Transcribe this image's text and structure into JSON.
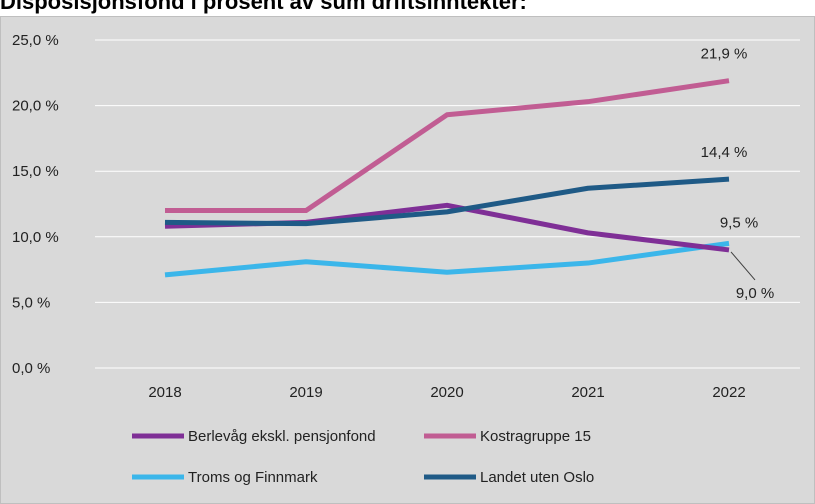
{
  "page_title": "Disposisjonsfond i prosent av sum driftsinntekter:",
  "chart_data": {
    "type": "line",
    "title": "Disposisjonsfond i prosent av sum driftsinntekter:",
    "categories": [
      "2018",
      "2019",
      "2020",
      "2021",
      "2022"
    ],
    "ylim": [
      0,
      25
    ],
    "yticks": [
      0,
      5,
      10,
      15,
      20,
      25
    ],
    "ytick_labels": [
      "0,0 %",
      "5,0 %",
      "10,0 %",
      "15,0 %",
      "20,0 %",
      "25,0 %"
    ],
    "grid": true,
    "legend_position": "bottom",
    "series": [
      {
        "name": "Berlevåg ekskl. pensjonfond",
        "color": "#7f2f96",
        "values": [
          10.8,
          11.1,
          12.4,
          10.3,
          9.0
        ]
      },
      {
        "name": "Kostragruppe 15",
        "color": "#c15d93",
        "values": [
          12.0,
          12.0,
          19.3,
          20.3,
          21.9
        ]
      },
      {
        "name": "Troms og Finnmark",
        "color": "#3bb6ea",
        "values": [
          7.1,
          8.1,
          7.3,
          8.0,
          9.5
        ]
      },
      {
        "name": "Landet uten Oslo",
        "color": "#1f5a86",
        "values": [
          11.1,
          11.0,
          11.9,
          13.7,
          14.4
        ]
      }
    ],
    "data_labels": [
      {
        "series": "Kostragruppe 15",
        "category": "2022",
        "text": "21,9 %"
      },
      {
        "series": "Landet uten Oslo",
        "category": "2022",
        "text": "14,4 %"
      },
      {
        "series": "Troms og Finnmark",
        "category": "2022",
        "text": "9,5 %"
      },
      {
        "series": "Berlevåg ekskl. pensjonfond",
        "category": "2022",
        "text": "9,0 %"
      }
    ]
  }
}
